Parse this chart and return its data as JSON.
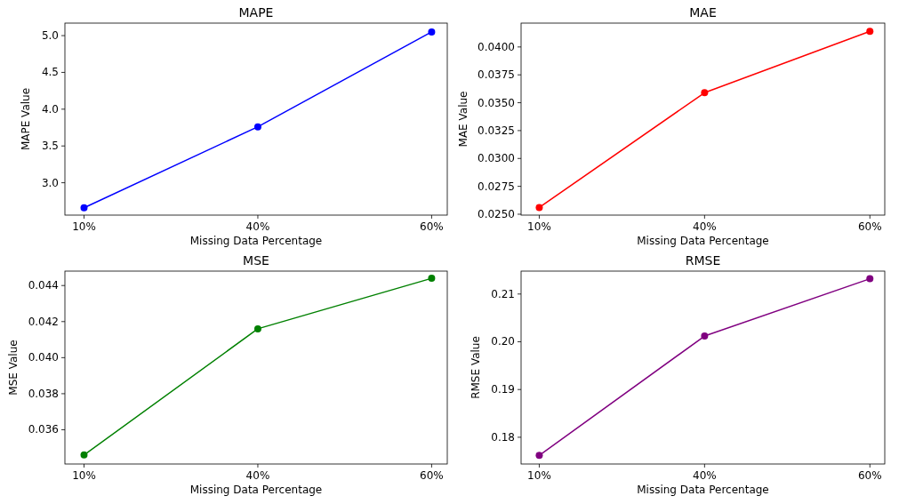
{
  "chart_data": [
    {
      "type": "line",
      "title": "MAPE",
      "xlabel": "Missing Data Percentage",
      "ylabel": "MAPE Value",
      "categories": [
        "10%",
        "40%",
        "60%"
      ],
      "marker": "circle",
      "series": [
        {
          "color": "#0000ff",
          "values": [
            2.66,
            3.76,
            5.05
          ]
        }
      ],
      "ylim": [
        2.56,
        5.17
      ],
      "yticks": [
        {
          "value": 3.0,
          "label": "3.0"
        },
        {
          "value": 3.5,
          "label": "3.5"
        },
        {
          "value": 4.0,
          "label": "4.0"
        },
        {
          "value": 4.5,
          "label": "4.5"
        },
        {
          "value": 5.0,
          "label": "5.0"
        }
      ]
    },
    {
      "type": "line",
      "title": "MAE",
      "xlabel": "Missing Data Percentage",
      "ylabel": "MAE Value",
      "categories": [
        "10%",
        "40%",
        "60%"
      ],
      "marker": "circle",
      "series": [
        {
          "color": "#ff0000",
          "values": [
            0.0256,
            0.0359,
            0.0414
          ]
        }
      ],
      "ylim": [
        0.02492,
        0.04214
      ],
      "yticks": [
        {
          "value": 0.025,
          "label": "0.0250"
        },
        {
          "value": 0.0275,
          "label": "0.0275"
        },
        {
          "value": 0.03,
          "label": "0.0300"
        },
        {
          "value": 0.0325,
          "label": "0.0325"
        },
        {
          "value": 0.035,
          "label": "0.0350"
        },
        {
          "value": 0.0375,
          "label": "0.0375"
        },
        {
          "value": 0.04,
          "label": "0.0400"
        }
      ]
    },
    {
      "type": "line",
      "title": "MSE",
      "xlabel": "Missing Data Percentage",
      "ylabel": "MSE Value",
      "categories": [
        "10%",
        "40%",
        "60%"
      ],
      "marker": "circle",
      "series": [
        {
          "color": "#008000",
          "values": [
            0.0346,
            0.0416,
            0.0444
          ]
        }
      ],
      "ylim": [
        0.0341,
        0.0448
      ],
      "yticks": [
        {
          "value": 0.036,
          "label": "0.036"
        },
        {
          "value": 0.038,
          "label": "0.038"
        },
        {
          "value": 0.04,
          "label": "0.040"
        },
        {
          "value": 0.042,
          "label": "0.042"
        },
        {
          "value": 0.044,
          "label": "0.044"
        }
      ]
    },
    {
      "type": "line",
      "title": "RMSE",
      "xlabel": "Missing Data Percentage",
      "ylabel": "RMSE Value",
      "categories": [
        "10%",
        "40%",
        "60%"
      ],
      "marker": "circle",
      "series": [
        {
          "color": "#800080",
          "values": [
            0.1762,
            0.2012,
            0.2132
          ]
        }
      ],
      "ylim": [
        0.1744,
        0.2148
      ],
      "yticks": [
        {
          "value": 0.18,
          "label": "0.18"
        },
        {
          "value": 0.19,
          "label": "0.19"
        },
        {
          "value": 0.2,
          "label": "0.20"
        },
        {
          "value": 0.21,
          "label": "0.21"
        }
      ]
    }
  ]
}
